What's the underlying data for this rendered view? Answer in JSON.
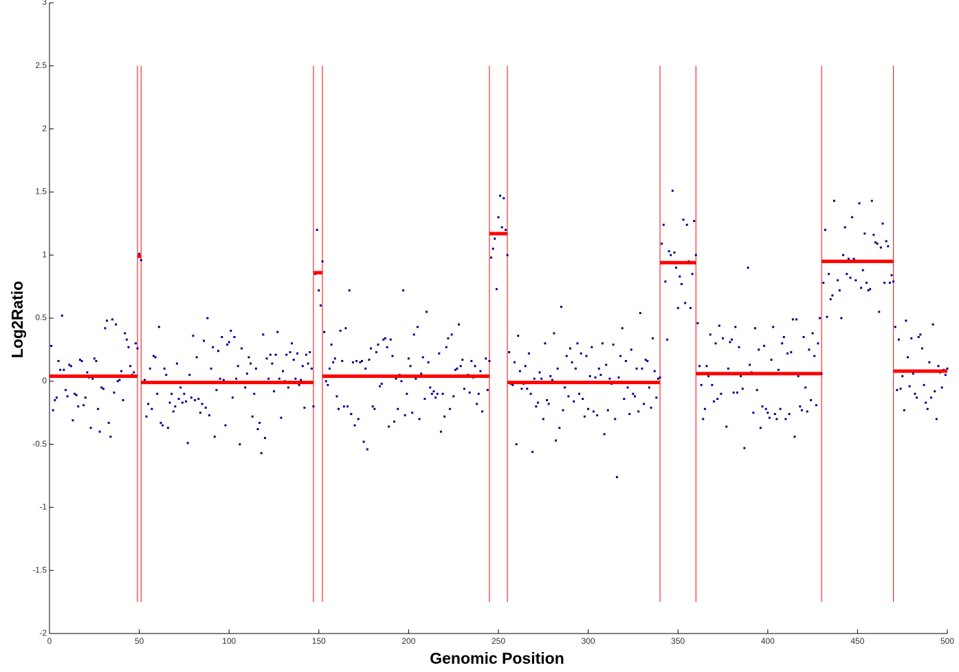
{
  "chart_data": {
    "type": "scatter",
    "x_label": "Genomic Position",
    "y_label": "Log2Ratio",
    "xlim": [
      0,
      500
    ],
    "ylim": [
      -2,
      3
    ],
    "xticks": [
      0,
      50,
      100,
      150,
      200,
      250,
      300,
      350,
      400,
      450,
      500
    ],
    "yticks": [
      -2,
      -1.5,
      -1,
      -0.5,
      0,
      0.5,
      1,
      1.5,
      2,
      2.5,
      3
    ],
    "grid": false,
    "point_color": "#00008b",
    "segment_color": "#ff0000",
    "x": [
      1,
      2,
      3,
      4,
      5,
      6,
      7,
      8,
      9,
      10,
      11,
      12,
      13,
      14,
      15,
      16,
      17,
      18,
      19,
      20,
      21,
      22,
      23,
      24,
      25,
      26,
      27,
      28,
      29,
      30,
      31,
      32,
      33,
      34,
      35,
      36,
      37,
      38,
      39,
      40,
      41,
      42,
      43,
      44,
      45,
      46,
      47,
      48,
      49,
      50,
      51,
      52,
      53,
      54,
      55,
      56,
      57,
      58,
      59,
      60,
      61,
      62,
      63,
      64,
      65,
      66,
      67,
      68,
      69,
      70,
      71,
      72,
      73,
      74,
      75,
      76,
      77,
      78,
      79,
      80,
      81,
      82,
      83,
      84,
      85,
      86,
      87,
      88,
      89,
      90,
      91,
      92,
      93,
      94,
      95,
      96,
      97,
      98,
      99,
      100,
      101,
      102,
      103,
      104,
      105,
      106,
      107,
      108,
      109,
      110,
      111,
      112,
      113,
      114,
      115,
      116,
      117,
      118,
      119,
      120,
      121,
      122,
      123,
      124,
      125,
      126,
      127,
      128,
      129,
      130,
      131,
      132,
      133,
      134,
      135,
      136,
      137,
      138,
      139,
      140,
      141,
      142,
      143,
      144,
      145,
      146,
      147,
      148,
      149,
      150,
      151,
      152,
      153,
      154,
      155,
      156,
      157,
      158,
      159,
      160,
      161,
      162,
      163,
      164,
      165,
      166,
      167,
      168,
      169,
      170,
      171,
      172,
      173,
      174,
      175,
      176,
      177,
      178,
      179,
      180,
      181,
      182,
      183,
      184,
      185,
      186,
      187,
      188,
      189,
      190,
      191,
      192,
      193,
      194,
      195,
      196,
      197,
      198,
      199,
      200,
      201,
      202,
      203,
      204,
      205,
      206,
      207,
      208,
      209,
      210,
      211,
      212,
      213,
      214,
      215,
      216,
      217,
      218,
      219,
      220,
      221,
      222,
      223,
      224,
      225,
      226,
      227,
      228,
      229,
      230,
      231,
      232,
      233,
      234,
      235,
      236,
      237,
      238,
      239,
      240,
      241,
      242,
      243,
      244,
      245,
      246,
      247,
      248,
      249,
      250,
      251,
      252,
      253,
      254,
      255,
      256,
      257,
      258,
      259,
      260,
      261,
      262,
      263,
      264,
      265,
      266,
      267,
      268,
      269,
      270,
      271,
      272,
      273,
      274,
      275,
      276,
      277,
      278,
      279,
      280,
      281,
      282,
      283,
      284,
      285,
      286,
      287,
      288,
      289,
      290,
      291,
      292,
      293,
      294,
      295,
      296,
      297,
      298,
      299,
      300,
      301,
      302,
      303,
      304,
      305,
      306,
      307,
      308,
      309,
      310,
      311,
      312,
      313,
      314,
      315,
      316,
      317,
      318,
      319,
      320,
      321,
      322,
      323,
      324,
      325,
      326,
      327,
      328,
      329,
      330,
      331,
      332,
      333,
      334,
      335,
      336,
      337,
      338,
      339,
      340,
      341,
      342,
      343,
      344,
      345,
      346,
      347,
      348,
      349,
      350,
      351,
      352,
      353,
      354,
      355,
      356,
      357,
      358,
      359,
      360,
      361,
      362,
      363,
      364,
      365,
      366,
      367,
      368,
      369,
      370,
      371,
      372,
      373,
      374,
      375,
      376,
      377,
      378,
      379,
      380,
      381,
      382,
      383,
      384,
      385,
      386,
      387,
      388,
      389,
      390,
      391,
      392,
      393,
      394,
      395,
      396,
      397,
      398,
      399,
      400,
      401,
      402,
      403,
      404,
      405,
      406,
      407,
      408,
      409,
      410,
      411,
      412,
      413,
      414,
      415,
      416,
      417,
      418,
      419,
      420,
      421,
      422,
      423,
      424,
      425,
      426,
      427,
      428,
      429,
      430,
      431,
      432,
      433,
      434,
      435,
      436,
      437,
      438,
      439,
      440,
      441,
      442,
      443,
      444,
      445,
      446,
      447,
      448,
      449,
      450,
      451,
      452,
      453,
      454,
      455,
      456,
      457,
      458,
      459,
      460,
      461,
      462,
      463,
      464,
      465,
      466,
      467,
      468,
      469,
      470,
      471,
      472,
      473,
      474,
      475,
      476,
      477,
      478,
      479,
      480,
      481,
      482,
      483,
      484,
      485,
      486,
      487,
      488,
      489,
      490,
      491,
      492,
      493,
      494,
      495,
      496,
      497,
      498,
      499,
      500
    ],
    "values": [
      0.28,
      -0.23,
      -0.15,
      -0.13,
      0.16,
      0.09,
      0.52,
      0.09,
      -0.07,
      -0.12,
      0.13,
      0.12,
      -0.31,
      -0.1,
      -0.11,
      -0.2,
      0.17,
      0.16,
      -0.19,
      -0.13,
      0.07,
      0.03,
      -0.37,
      0.02,
      0.18,
      0.16,
      -0.22,
      -0.4,
      -0.05,
      -0.06,
      0.42,
      0.48,
      -0.33,
      -0.44,
      0.49,
      -0.09,
      0.45,
      0,
      0.01,
      0.08,
      -0.15,
      0.38,
      0.33,
      0.27,
      0.12,
      0.05,
      0.07,
      0.3,
      0.26,
      1.01,
      0.96,
      -0.01,
      0.01,
      -0.28,
      -0.18,
      0.1,
      -0.22,
      0.2,
      0.19,
      -0.1,
      0.43,
      -0.33,
      -0.35,
      0.1,
      0.05,
      -0.37,
      -0.17,
      -0.1,
      -0.24,
      -0.2,
      0.14,
      -0.14,
      -0.05,
      -0.17,
      -0.1,
      -0.16,
      -0.49,
      0.05,
      -0.13,
      0.36,
      -0.15,
      0.19,
      -0.14,
      -0.25,
      -0.18,
      0.32,
      -0.21,
      0.5,
      -0.27,
      0.1,
      0.27,
      -0.44,
      -0.07,
      0.24,
      0.02,
      0.35,
      0.01,
      -0.35,
      0.29,
      0.31,
      0.4,
      -0.13,
      0.35,
      0.02,
      0.12,
      -0.5,
      0.26,
      -0.01,
      -0.05,
      0.06,
      0.19,
      0.14,
      -0.28,
      -0.1,
      0.1,
      -0.38,
      -0.33,
      -0.57,
      0.37,
      -0.45,
      0.18,
      0.02,
      0.21,
      0.14,
      -0.08,
      0.21,
      0.39,
      0.02,
      -0.29,
      0.08,
      0,
      0.21,
      -0.05,
      0.23,
      0.3,
      0.17,
      0.02,
      0.22,
      -0.03,
      0.01,
      0.12,
      -0.21,
      0.21,
      0.14,
      0.23,
      0.1,
      -0.2,
      0.85,
      1.2,
      0.72,
      0.6,
      0.95,
      0.39,
      0,
      -0.03,
      0.1,
      0.29,
      0.15,
      0.18,
      -0.12,
      -0.22,
      0.4,
      0.16,
      -0.2,
      0.42,
      -0.2,
      0.72,
      -0.26,
      0.15,
      -0.35,
      0.16,
      -0.3,
      0.15,
      0.16,
      -0.48,
      0.1,
      -0.54,
      0.17,
      0.26,
      -0.2,
      -0.22,
      0.23,
      0.29,
      -0.04,
      -0.02,
      0.33,
      0.34,
      0.27,
      -0.36,
      0.33,
      0.2,
      -0.32,
      0.02,
      -0.22,
      0.05,
      0,
      0.72,
      -0.27,
      -0.1,
      0.18,
      0.12,
      -0.25,
      0.37,
      0.02,
      0.43,
      -0.3,
      0.06,
      0.19,
      -0.14,
      0.55,
      0.15,
      -0.05,
      -0.1,
      -0.08,
      -0.13,
      -0.1,
      0.22,
      -0.4,
      -0.1,
      -0.28,
      0.27,
      0.34,
      -0.22,
      0.37,
      -0.12,
      0.09,
      0.1,
      0.45,
      0.12,
      0.17,
      -0.06,
      0.04,
      0.05,
      -0.09,
      0.16,
      0.03,
      0.12,
      -0.18,
      -0.1,
      0.08,
      -0.24,
      0.04,
      0.18,
      -0.07,
      0.16,
      0.98,
      1.05,
      1.13,
      0.73,
      1.3,
      1.47,
      1.22,
      1.45,
      1.2,
      1.0,
      0.23,
      -0.02,
      -0.03,
      0.15,
      -0.5,
      0.36,
      0.08,
      -0.06,
      -0.02,
      0.12,
      -0.06,
      0.22,
      -0.1,
      -0.56,
      0.02,
      -0.2,
      -0.17,
      0.07,
      0.02,
      -0.3,
      0.3,
      -0.15,
      -0.18,
      0.04,
      0.01,
      0.38,
      -0.47,
      0.1,
      -0.37,
      0.59,
      -0.23,
      -0.05,
      0.2,
      -0.12,
      0.26,
      0.15,
      -0.16,
      0.1,
      0.3,
      -0.1,
      0.22,
      -0.14,
      -0.28,
      0.2,
      -0.22,
      0.04,
      0.27,
      -0.24,
      0.03,
      -0.27,
      0.1,
      0.05,
      0.3,
      -0.42,
      0.13,
      -0.23,
      0.02,
      -0.02,
      0.29,
      -0.3,
      -0.76,
      0.03,
      0.2,
      0.42,
      -0.14,
      0.16,
      -0.05,
      -0.26,
      0.25,
      -0.1,
      -0.12,
      0.1,
      -0.24,
      0.54,
      0.1,
      -0.18,
      0.17,
      0.16,
      -0.05,
      -0.21,
      0.34,
      0.08,
      -0.13,
      0.02,
      0.03,
      1.09,
      1.24,
      0.79,
      0.33,
      1.03,
      1.0,
      1.51,
      1.02,
      0.9,
      0.58,
      0.83,
      0.77,
      1.28,
      0.62,
      1.24,
      0.95,
      0.58,
      0.85,
      1.27,
      1.0,
      0.46,
      0.12,
      -0.03,
      -0.3,
      -0.22,
      0.12,
      0.04,
      0.37,
      -0.03,
      -0.16,
      0.3,
      -0.14,
      0.44,
      -0.1,
      0.34,
      0.06,
      -0.36,
      0.1,
      0.31,
      0.33,
      -0.09,
      0.43,
      -0.09,
      0.27,
      0.04,
      -0.06,
      -0.53,
      0.06,
      0.9,
      0.13,
      0.07,
      -0.25,
      0.42,
      -0.07,
      0.25,
      -0.37,
      -0.2,
      0.28,
      -0.22,
      -0.25,
      -0.29,
      0.17,
      0.43,
      -0.26,
      -0.3,
      0.09,
      -0.22,
      0.3,
      0.35,
      -0.3,
      0.22,
      -0.26,
      0.23,
      0.49,
      -0.44,
      0.49,
      0.04,
      -0.2,
      -0.23,
      0.35,
      -0.05,
      -0.24,
      0.25,
      -0.15,
      0.38,
      0.2,
      -0.19,
      0.3,
      0.5,
      0.06,
      0.78,
      1.2,
      0.51,
      0.85,
      0.65,
      0.68,
      1.43,
      0.95,
      0.8,
      0.72,
      0.5,
      1.0,
      1.22,
      0.85,
      0.97,
      0.82,
      1.3,
      0.97,
      0.8,
      0.95,
      1.41,
      0.74,
      0.88,
      1.17,
      0.78,
      0.72,
      0.73,
      1.43,
      1.16,
      1.1,
      1.09,
      0.55,
      1.06,
      1.25,
      0.78,
      1.11,
      1.07,
      0.78,
      0.84,
      0.79,
      0.43,
      -0.07,
      0.33,
      -0.06,
      0.04,
      -0.23,
      0.48,
      0.19,
      -0.04,
      0.34,
      0.06,
      -0.1,
      -0.13,
      0.35,
      0.37,
      0.26,
      -0.03,
      -0.17,
      -0.22,
      0.15,
      -0.13,
      0.45,
      -0.08,
      -0.3,
      0.12,
      0.07,
      -0.05,
      0.09,
      0.05,
      0.1
    ],
    "segments": [
      {
        "start": 0,
        "end": 49,
        "value": 0.04
      },
      {
        "start": 49,
        "end": 51,
        "value": 0.99
      },
      {
        "start": 51,
        "end": 147,
        "value": -0.01
      },
      {
        "start": 147,
        "end": 152,
        "value": 0.86
      },
      {
        "start": 152,
        "end": 245,
        "value": 0.04
      },
      {
        "start": 245,
        "end": 255,
        "value": 1.17
      },
      {
        "start": 255,
        "end": 340,
        "value": -0.01
      },
      {
        "start": 340,
        "end": 360,
        "value": 0.94
      },
      {
        "start": 360,
        "end": 430,
        "value": 0.06
      },
      {
        "start": 430,
        "end": 470,
        "value": 0.95
      },
      {
        "start": 470,
        "end": 500,
        "value": 0.08
      }
    ],
    "breakpoints": [
      49,
      51,
      147,
      152,
      245,
      255,
      340,
      360,
      430,
      470
    ],
    "breakpoint_range": [
      -1.75,
      2.5
    ]
  }
}
